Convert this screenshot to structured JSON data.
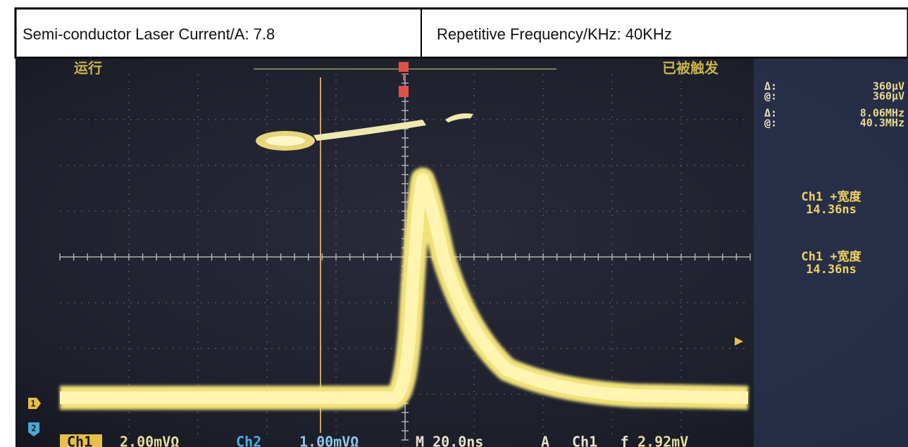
{
  "header": {
    "cells": [
      "Semi-conductor Laser Current/A: 7.8",
      "Repetitive Frequency/KHz: 40KHz"
    ]
  },
  "screen": {
    "status_left": "运行",
    "status_right": "已被触发",
    "trigger_marker": "T",
    "readouts": [
      {
        "label": "Δ:",
        "value": "360µV"
      },
      {
        "label": "@:",
        "value": "360µV"
      },
      {
        "label": "Δ:",
        "value": "8.06MHz"
      },
      {
        "label": "@:",
        "value": "40.3MHz"
      }
    ],
    "measurements": [
      {
        "name": "Ch1 +宽度",
        "value": "14.36ns"
      },
      {
        "name": "Ch1 +宽度",
        "value": "14.36ns"
      }
    ],
    "channel_markers": [
      "1",
      "2"
    ],
    "bottom_bar": [
      "Ch1",
      "2.00mVΩ",
      "Ch2",
      "1.00mVΩ",
      "M 20.0ns",
      "A",
      "Ch1",
      "ƒ",
      "2.92mV"
    ]
  }
}
